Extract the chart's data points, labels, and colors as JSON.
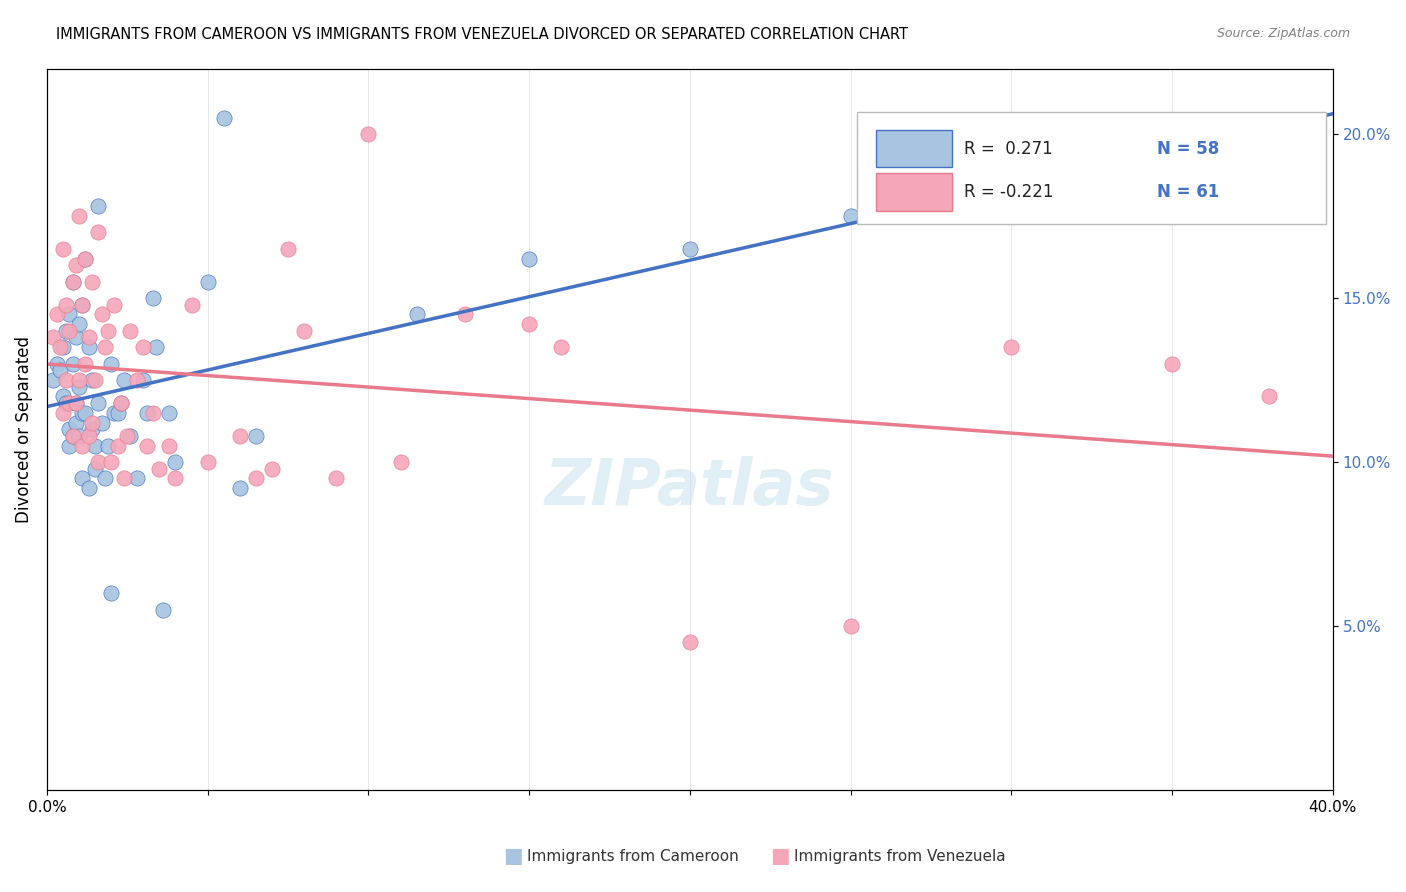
{
  "title": "IMMIGRANTS FROM CAMEROON VS IMMIGRANTS FROM VENEZUELA DIVORCED OR SEPARATED CORRELATION CHART",
  "source": "Source: ZipAtlas.com",
  "ylabel": "Divorced or Separated",
  "right_yticks": [
    "5.0%",
    "10.0%",
    "15.0%",
    "20.0%"
  ],
  "right_ytick_vals": [
    0.05,
    0.1,
    0.15,
    0.2
  ],
  "color_cameroon": "#a8c4e0",
  "color_venezuela": "#f4a7b9",
  "color_cameroon_line": "#4472c4",
  "color_venezuela_line": "#e87a8c",
  "xlim": [
    0.0,
    0.4
  ],
  "ylim": [
    0.0,
    0.22
  ],
  "cameroon_x": [
    0.002,
    0.003,
    0.004,
    0.005,
    0.005,
    0.006,
    0.006,
    0.007,
    0.007,
    0.007,
    0.008,
    0.008,
    0.008,
    0.009,
    0.009,
    0.009,
    0.01,
    0.01,
    0.01,
    0.011,
    0.011,
    0.011,
    0.012,
    0.012,
    0.013,
    0.013,
    0.014,
    0.014,
    0.015,
    0.015,
    0.016,
    0.016,
    0.017,
    0.018,
    0.019,
    0.02,
    0.02,
    0.021,
    0.022,
    0.023,
    0.024,
    0.026,
    0.028,
    0.03,
    0.031,
    0.033,
    0.034,
    0.036,
    0.038,
    0.04,
    0.05,
    0.055,
    0.06,
    0.065,
    0.115,
    0.15,
    0.2,
    0.25
  ],
  "cameroon_y": [
    0.125,
    0.13,
    0.128,
    0.135,
    0.12,
    0.14,
    0.118,
    0.145,
    0.11,
    0.105,
    0.13,
    0.108,
    0.155,
    0.112,
    0.138,
    0.118,
    0.142,
    0.123,
    0.108,
    0.148,
    0.115,
    0.095,
    0.162,
    0.115,
    0.135,
    0.092,
    0.125,
    0.11,
    0.105,
    0.098,
    0.178,
    0.118,
    0.112,
    0.095,
    0.105,
    0.13,
    0.06,
    0.115,
    0.115,
    0.118,
    0.125,
    0.108,
    0.095,
    0.125,
    0.115,
    0.15,
    0.135,
    0.055,
    0.115,
    0.1,
    0.155,
    0.205,
    0.092,
    0.108,
    0.145,
    0.162,
    0.165,
    0.175
  ],
  "venezuela_x": [
    0.002,
    0.003,
    0.004,
    0.005,
    0.005,
    0.006,
    0.006,
    0.007,
    0.007,
    0.008,
    0.008,
    0.009,
    0.009,
    0.01,
    0.01,
    0.011,
    0.011,
    0.012,
    0.012,
    0.013,
    0.013,
    0.014,
    0.014,
    0.015,
    0.016,
    0.016,
    0.017,
    0.018,
    0.019,
    0.02,
    0.021,
    0.022,
    0.023,
    0.024,
    0.025,
    0.026,
    0.028,
    0.03,
    0.031,
    0.033,
    0.035,
    0.038,
    0.04,
    0.045,
    0.05,
    0.06,
    0.065,
    0.07,
    0.075,
    0.08,
    0.09,
    0.1,
    0.11,
    0.13,
    0.15,
    0.16,
    0.2,
    0.25,
    0.3,
    0.35,
    0.38
  ],
  "venezuela_y": [
    0.138,
    0.145,
    0.135,
    0.165,
    0.115,
    0.125,
    0.148,
    0.14,
    0.118,
    0.155,
    0.108,
    0.16,
    0.118,
    0.175,
    0.125,
    0.148,
    0.105,
    0.162,
    0.13,
    0.138,
    0.108,
    0.155,
    0.112,
    0.125,
    0.17,
    0.1,
    0.145,
    0.135,
    0.14,
    0.1,
    0.148,
    0.105,
    0.118,
    0.095,
    0.108,
    0.14,
    0.125,
    0.135,
    0.105,
    0.115,
    0.098,
    0.105,
    0.095,
    0.148,
    0.1,
    0.108,
    0.095,
    0.098,
    0.165,
    0.14,
    0.095,
    0.2,
    0.1,
    0.145,
    0.142,
    0.135,
    0.045,
    0.05,
    0.135,
    0.13,
    0.12
  ]
}
